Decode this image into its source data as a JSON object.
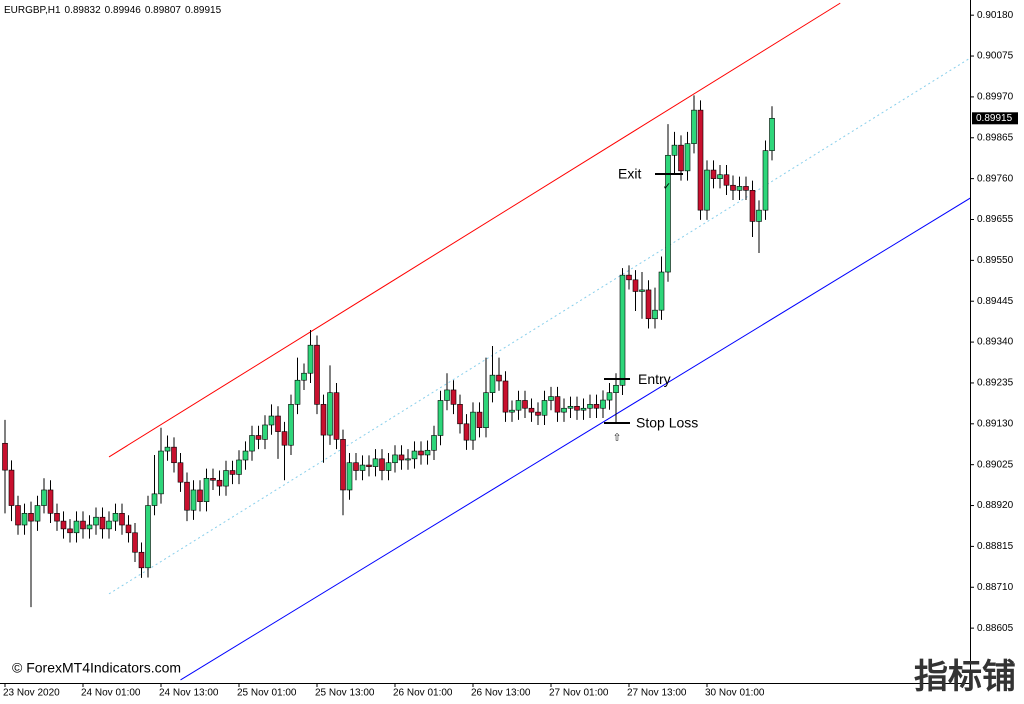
{
  "chart_data": {
    "type": "candlestick",
    "symbol": "EURGBP,H1",
    "watermark": "© ForexMT4Indicators.com",
    "brand": "指标铺",
    "up_color": "#2ed67a",
    "down_color": "#c8102e",
    "ylim": [
      0.88464,
      0.90219
    ],
    "yticks": [
      {
        "value": 0.9018,
        "label": "0.90180"
      },
      {
        "value": 0.90075,
        "label": "0.90075"
      },
      {
        "value": 0.8997,
        "label": "0.89970"
      },
      {
        "value": 0.89865,
        "label": "0.89865"
      },
      {
        "value": 0.8976,
        "label": "0.89760"
      },
      {
        "value": 0.89655,
        "label": "0.89655"
      },
      {
        "value": 0.8955,
        "label": "0.89550"
      },
      {
        "value": 0.89445,
        "label": "0.89445"
      },
      {
        "value": 0.8934,
        "label": "0.89340"
      },
      {
        "value": 0.89235,
        "label": "0.89235"
      },
      {
        "value": 0.8913,
        "label": "0.89130"
      },
      {
        "value": 0.89025,
        "label": "0.89025"
      },
      {
        "value": 0.8892,
        "label": "0.88920"
      },
      {
        "value": 0.88815,
        "label": "0.88815"
      },
      {
        "value": 0.8871,
        "label": "0.88710"
      },
      {
        "value": 0.88605,
        "label": "0.88605"
      }
    ],
    "categories": [
      "23 Nov 2020",
      null,
      null,
      null,
      null,
      null,
      null,
      null,
      null,
      null,
      null,
      null,
      "24 Nov 01:00",
      null,
      null,
      null,
      null,
      null,
      null,
      null,
      null,
      null,
      null,
      null,
      "24 Nov 13:00",
      null,
      null,
      null,
      null,
      null,
      null,
      null,
      null,
      null,
      null,
      null,
      "25 Nov 01:00",
      null,
      null,
      null,
      null,
      null,
      null,
      null,
      null,
      null,
      null,
      null,
      "25 Nov 13:00",
      null,
      null,
      null,
      null,
      null,
      null,
      null,
      null,
      null,
      null,
      null,
      "26 Nov 01:00",
      null,
      null,
      null,
      null,
      null,
      null,
      null,
      null,
      null,
      null,
      null,
      "26 Nov 13:00",
      null,
      null,
      null,
      null,
      null,
      null,
      null,
      null,
      null,
      null,
      null,
      "27 Nov 01:00",
      null,
      null,
      null,
      null,
      null,
      null,
      null,
      null,
      null,
      null,
      null,
      "27 Nov 13:00",
      null,
      null,
      null,
      null,
      null,
      null,
      null,
      null,
      null,
      null,
      null,
      "30 Nov 01:00",
      null,
      null,
      null,
      null,
      null,
      null,
      null,
      null,
      null,
      null
    ],
    "open": [
      0.8908,
      0.89011,
      0.8892,
      0.8887,
      0.889,
      0.8888,
      0.8892,
      0.8896,
      0.889,
      0.8888,
      0.8886,
      0.8885,
      0.8888,
      0.8886,
      0.8887,
      0.8889,
      0.8886,
      0.8888,
      0.889,
      0.8887,
      0.8885,
      0.888,
      0.8876,
      0.8892,
      0.8895,
      0.8906,
      0.8907,
      0.8903,
      0.8898,
      0.88908,
      0.8896,
      0.8893,
      0.8899,
      0.88985,
      0.8897,
      0.8901,
      0.89,
      0.89037,
      0.8906,
      0.891,
      0.8909,
      0.89127,
      0.8915,
      0.8911,
      0.89075,
      0.8918,
      0.89242,
      0.8926,
      0.89332,
      0.8918,
      0.89101,
      0.8921,
      0.8909,
      0.8896,
      0.8903,
      0.8901,
      0.89024,
      0.8902,
      0.8904,
      0.8901,
      0.8903,
      0.8905,
      0.89037,
      0.8904,
      0.8906,
      0.8905,
      0.89062,
      0.891,
      0.8919,
      0.89217,
      0.8918,
      0.8913,
      0.89088,
      0.8916,
      0.8912,
      0.8921,
      0.89255,
      0.8924,
      0.8916,
      0.89165,
      0.8919,
      0.8917,
      0.8916,
      0.89152,
      0.8919,
      0.892,
      0.8916,
      0.8917,
      0.89175,
      0.89165,
      0.8917,
      0.8918,
      0.8917,
      0.89191,
      0.8921,
      0.89229,
      0.89512,
      0.895,
      0.8947,
      0.89474,
      0.894,
      0.89422,
      0.8952,
      0.8982,
      0.89846,
      0.8978,
      0.8985,
      0.89936,
      0.89679,
      0.89782,
      0.8976,
      0.8977,
      0.89743,
      0.8973,
      0.8974,
      0.8973,
      0.8965,
      0.89679,
      0.89832
    ],
    "high": [
      0.8914,
      0.89036,
      0.88945,
      0.88925,
      0.8893,
      0.88945,
      0.8899,
      0.88985,
      0.88925,
      0.88905,
      0.88885,
      0.88905,
      0.88905,
      0.88895,
      0.88915,
      0.88915,
      0.88905,
      0.88925,
      0.88925,
      0.88895,
      0.88875,
      0.88825,
      0.88945,
      0.8905,
      0.8912,
      0.891,
      0.89095,
      0.89055,
      0.89005,
      0.88985,
      0.88985,
      0.89015,
      0.89015,
      0.8901,
      0.89035,
      0.89035,
      0.89062,
      0.89085,
      0.89125,
      0.89125,
      0.89152,
      0.8918,
      0.89175,
      0.89135,
      0.89205,
      0.893,
      0.89285,
      0.89371,
      0.89357,
      0.89205,
      0.8928,
      0.89235,
      0.89115,
      0.89055,
      0.89055,
      0.89049,
      0.89049,
      0.89065,
      0.89065,
      0.89055,
      0.89075,
      0.89075,
      0.89065,
      0.89085,
      0.89085,
      0.89087,
      0.89125,
      0.89215,
      0.8926,
      0.89242,
      0.89205,
      0.89155,
      0.89185,
      0.89185,
      0.893,
      0.8933,
      0.893,
      0.89265,
      0.8919,
      0.89215,
      0.89215,
      0.89195,
      0.89185,
      0.89215,
      0.89225,
      0.89225,
      0.89195,
      0.892,
      0.892,
      0.89195,
      0.89205,
      0.89205,
      0.89216,
      0.89235,
      0.8926,
      0.8953,
      0.89537,
      0.89525,
      0.8952,
      0.89499,
      0.8948,
      0.8956,
      0.899,
      0.8988,
      0.89871,
      0.8988,
      0.89974,
      0.89961,
      0.89807,
      0.89807,
      0.89795,
      0.89795,
      0.89768,
      0.89765,
      0.89765,
      0.89755,
      0.89704,
      0.89858,
      0.89946
    ],
    "low": [
      0.889,
      0.8888,
      0.88845,
      0.88845,
      0.88659,
      0.88855,
      0.889,
      0.88875,
      0.88855,
      0.88835,
      0.88825,
      0.88825,
      0.88835,
      0.88835,
      0.88845,
      0.88835,
      0.88835,
      0.88855,
      0.88845,
      0.88825,
      0.88775,
      0.88734,
      0.88735,
      0.88895,
      0.88925,
      0.89035,
      0.89005,
      0.88955,
      0.8888,
      0.88883,
      0.88905,
      0.88905,
      0.8896,
      0.88945,
      0.88945,
      0.88975,
      0.88975,
      0.89012,
      0.89035,
      0.89065,
      0.89065,
      0.89102,
      0.8904,
      0.88985,
      0.8905,
      0.89155,
      0.89217,
      0.89235,
      0.89155,
      0.8903,
      0.89076,
      0.89065,
      0.88895,
      0.88935,
      0.88985,
      0.88985,
      0.88995,
      0.88995,
      0.88985,
      0.88985,
      0.89005,
      0.89012,
      0.89012,
      0.89015,
      0.89025,
      0.89025,
      0.89037,
      0.89075,
      0.89165,
      0.89155,
      0.89105,
      0.89063,
      0.89063,
      0.89095,
      0.89095,
      0.89185,
      0.89215,
      0.89135,
      0.89135,
      0.8914,
      0.89145,
      0.89135,
      0.89127,
      0.89127,
      0.89165,
      0.89135,
      0.89135,
      0.89145,
      0.8914,
      0.8914,
      0.89145,
      0.89145,
      0.89145,
      0.89166,
      0.8913,
      0.89204,
      0.89475,
      0.8942,
      0.894,
      0.89375,
      0.89375,
      0.89397,
      0.89495,
      0.8977,
      0.89755,
      0.89755,
      0.89825,
      0.89654,
      0.89654,
      0.89735,
      0.89735,
      0.89718,
      0.89705,
      0.89705,
      0.89705,
      0.8961,
      0.89569,
      0.89654,
      0.89807
    ],
    "close": [
      0.89011,
      0.8892,
      0.8887,
      0.889,
      0.8888,
      0.8892,
      0.8896,
      0.889,
      0.8888,
      0.8886,
      0.8885,
      0.8888,
      0.8886,
      0.8887,
      0.8889,
      0.8886,
      0.8888,
      0.889,
      0.8887,
      0.8885,
      0.888,
      0.8876,
      0.8892,
      0.8895,
      0.8906,
      0.8907,
      0.8903,
      0.8898,
      0.88908,
      0.8896,
      0.8893,
      0.8899,
      0.88985,
      0.8897,
      0.8901,
      0.89,
      0.89037,
      0.8906,
      0.891,
      0.8909,
      0.89127,
      0.8915,
      0.8911,
      0.89075,
      0.8918,
      0.89242,
      0.8926,
      0.89332,
      0.8918,
      0.89101,
      0.8921,
      0.8909,
      0.8896,
      0.8903,
      0.8901,
      0.89024,
      0.8902,
      0.8904,
      0.8901,
      0.8903,
      0.8905,
      0.89037,
      0.8904,
      0.8906,
      0.8905,
      0.89062,
      0.891,
      0.8919,
      0.89217,
      0.8918,
      0.8913,
      0.89088,
      0.8916,
      0.8912,
      0.8921,
      0.89255,
      0.8924,
      0.8916,
      0.89165,
      0.8919,
      0.8917,
      0.8916,
      0.89152,
      0.8919,
      0.892,
      0.8916,
      0.8917,
      0.89175,
      0.89165,
      0.8917,
      0.8918,
      0.8917,
      0.89191,
      0.8921,
      0.89229,
      0.89512,
      0.895,
      0.8947,
      0.89474,
      0.894,
      0.89422,
      0.8952,
      0.8982,
      0.89846,
      0.8978,
      0.8985,
      0.89936,
      0.89679,
      0.89782,
      0.8976,
      0.8977,
      0.89743,
      0.8973,
      0.8974,
      0.8973,
      0.8965,
      0.89679,
      0.89832,
      0.89915
    ],
    "trendlines": [
      {
        "color": "#ff0000",
        "style": "solid",
        "x": [
          16,
          128.5
        ],
        "y": [
          0.89045,
          0.90211
        ]
      },
      {
        "color": "#87ceeb",
        "style": "dotted",
        "x": [
          16,
          148.5
        ],
        "y": [
          0.88693,
          0.9007
        ]
      },
      {
        "color": "#0000ff",
        "style": "solid",
        "x": [
          27,
          148.5
        ],
        "y": [
          0.88472,
          0.8971
        ]
      }
    ],
    "levels": [
      {
        "label": "Exit",
        "value": 0.89772
      },
      {
        "label": "Entry",
        "value": 0.89245
      },
      {
        "label": "Stop Loss",
        "value": 0.89132
      }
    ]
  }
}
